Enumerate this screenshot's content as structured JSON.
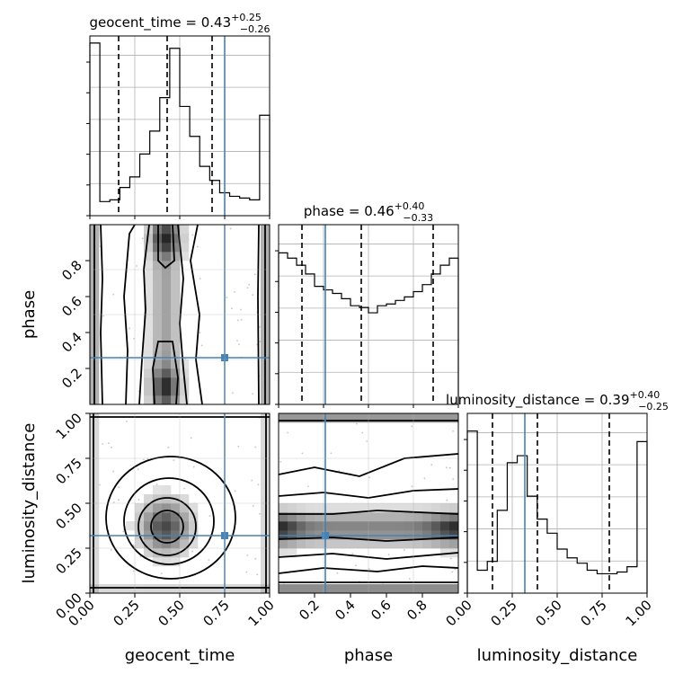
{
  "chart_data": {
    "type": "corner",
    "parameters": [
      "geocent_time",
      "phase",
      "luminosity_distance"
    ],
    "injection": {
      "geocent_time": 0.75,
      "phase": 0.26,
      "luminosity_distance": 0.32
    },
    "marginals": [
      {
        "name": "geocent_time",
        "title": {
          "base": "geocent_time = 0.43",
          "plus": "+0.25",
          "minus": "−0.26"
        },
        "range": [
          0,
          1
        ],
        "ticks": [
          "0.00",
          "0.25",
          "0.50",
          "0.75",
          "1.00"
        ],
        "quantiles": [
          0.16,
          0.43,
          0.68
        ],
        "hist": [
          0.98,
          0.08,
          0.09,
          0.16,
          0.22,
          0.35,
          0.48,
          0.67,
          0.95,
          0.62,
          0.45,
          0.28,
          0.2,
          0.13,
          0.11,
          0.1,
          0.09,
          0.57
        ],
        "ymax": 1.02
      },
      {
        "name": "phase",
        "title": {
          "base": "phase = 0.46",
          "plus": "+0.40",
          "minus": "−0.33"
        },
        "range": [
          0,
          1
        ],
        "ticks": [
          "0.2",
          "0.4",
          "0.6",
          "0.8"
        ],
        "quantiles": [
          0.13,
          0.46,
          0.86
        ],
        "hist": [
          0.86,
          0.83,
          0.79,
          0.74,
          0.67,
          0.65,
          0.63,
          0.6,
          0.56,
          0.55,
          0.52,
          0.56,
          0.57,
          0.59,
          0.61,
          0.64,
          0.68,
          0.74,
          0.79,
          0.83
        ],
        "ymax": 1.02
      },
      {
        "name": "luminosity_distance",
        "title": {
          "base": "luminosity_distance = 0.39",
          "plus": "+0.40",
          "minus": "−0.25"
        },
        "range": [
          0,
          1
        ],
        "ticks": [
          "0.00",
          "0.25",
          "0.50",
          "0.75",
          "1.00"
        ],
        "quantiles": [
          0.14,
          0.39,
          0.79
        ],
        "hist": [
          0.92,
          0.13,
          0.18,
          0.47,
          0.74,
          0.78,
          0.55,
          0.42,
          0.34,
          0.25,
          0.2,
          0.17,
          0.13,
          0.11,
          0.11,
          0.12,
          0.15,
          0.86
        ],
        "ymax": 1.02
      }
    ],
    "pairs": [
      {
        "x": "geocent_time",
        "y": "phase",
        "yticks": [
          "0.2",
          "0.4",
          "0.6",
          "0.8"
        ],
        "density_grid_note": "visual approximation",
        "contours": "stepped"
      },
      {
        "x": "geocent_time",
        "y": "luminosity_distance",
        "yticks": [
          "0.00",
          "0.25",
          "0.50",
          "0.75",
          "1.00"
        ],
        "contours": "nested-ellipses"
      },
      {
        "x": "phase",
        "y": "luminosity_distance",
        "contours": "horizontal-bands"
      }
    ],
    "axis_labels": {
      "bottom": [
        "geocent_time",
        "phase",
        "luminosity_distance"
      ],
      "left": [
        "phase",
        "luminosity_distance"
      ]
    },
    "colors": {
      "truth": "#4682b4",
      "hist": "#000000",
      "grid": "#b0b0b0",
      "quantile": "#000000"
    }
  }
}
